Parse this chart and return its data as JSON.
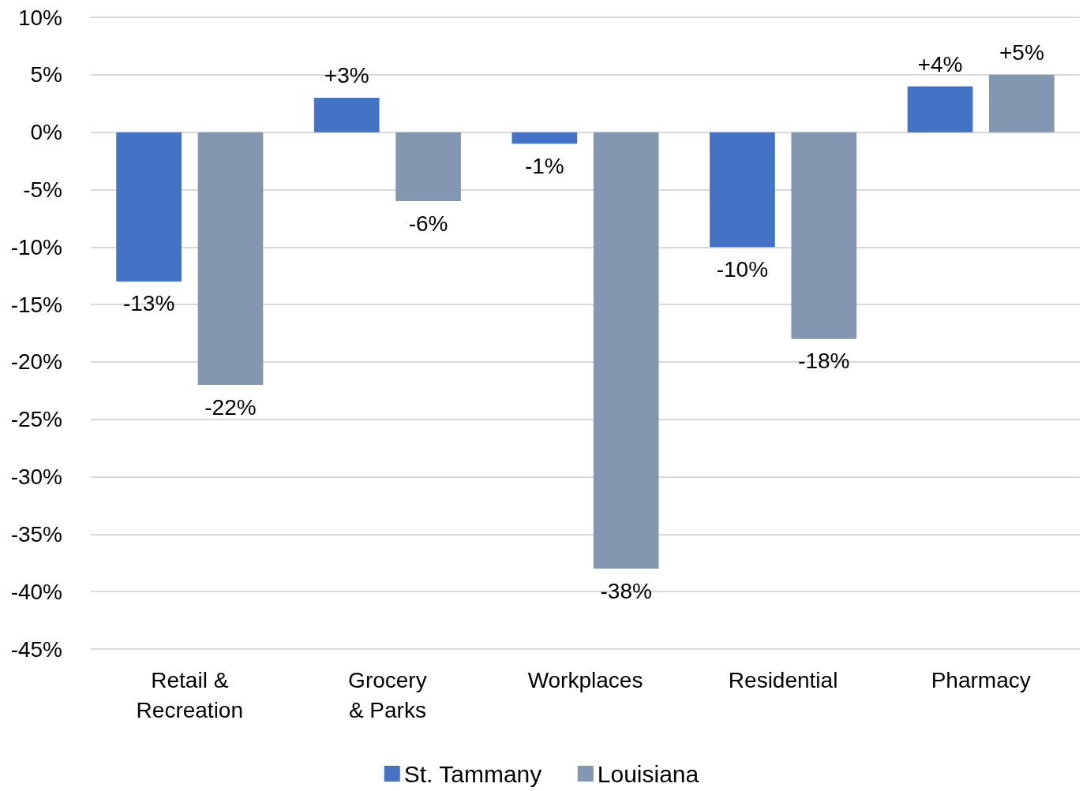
{
  "chart_data": {
    "type": "bar",
    "categories": [
      "Retail &\nRecreation",
      "Grocery\n& Parks",
      "Workplaces",
      "Residential",
      "Pharmacy"
    ],
    "series": [
      {
        "name": "St. Tammany",
        "color": "#4472c4",
        "values": [
          -13,
          3,
          -1,
          -10,
          4
        ],
        "value_labels": [
          "-13%",
          "+3%",
          "-1%",
          "-10%",
          "+4%"
        ]
      },
      {
        "name": "Louisiana",
        "color": "#8497b0",
        "values": [
          -22,
          -6,
          -38,
          -18,
          5
        ],
        "value_labels": [
          "-22%",
          "-6%",
          "-38%",
          "-18%",
          "+5%"
        ]
      }
    ],
    "ylim": [
      -45,
      10
    ],
    "yticks": [
      {
        "value": -45,
        "label": "-45%"
      },
      {
        "value": -40,
        "label": "-40%"
      },
      {
        "value": -35,
        "label": "-35%"
      },
      {
        "value": -30,
        "label": "-30%"
      },
      {
        "value": -25,
        "label": "-25%"
      },
      {
        "value": -20,
        "label": "-20%"
      },
      {
        "value": -15,
        "label": "-15%"
      },
      {
        "value": -10,
        "label": "-10%"
      },
      {
        "value": -5,
        "label": "-5%"
      },
      {
        "value": 0,
        "label": "0%"
      },
      {
        "value": 5,
        "label": "5%"
      },
      {
        "value": 10,
        "label": "10%"
      }
    ],
    "grid": "y",
    "legend": "bottom"
  }
}
